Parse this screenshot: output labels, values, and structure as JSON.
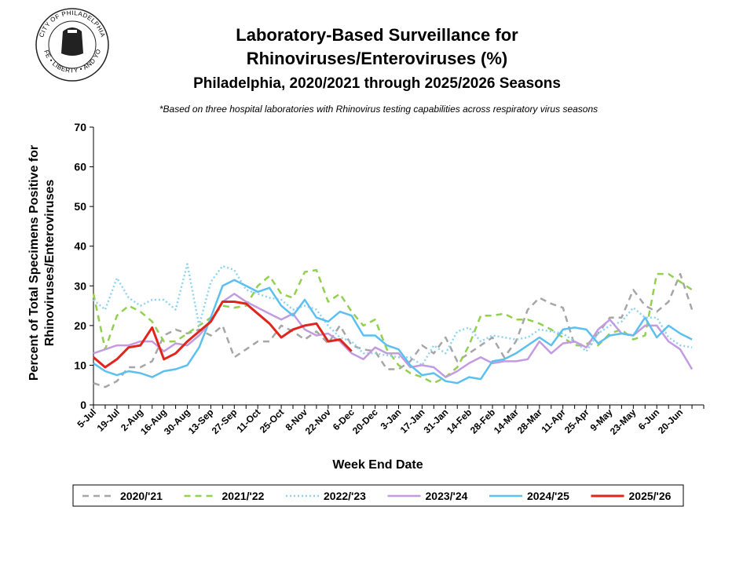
{
  "logo": {
    "top": "CITY OF PHILADELPHIA",
    "bottom": "LIFE • LIBERTY • AND YOU"
  },
  "chart_data": {
    "type": "line",
    "title": "Laboratory-Based Surveillance for",
    "title2": "Rhinoviruses/Enteroviruses (%)",
    "subtitle": "Philadelphia, 2020/2021 through 2025/2026 Seasons",
    "note": "*Based on three hospital laboratories with Rhinovirus testing capabilities across respiratory virus seasons",
    "xlabel": "Week End Date",
    "ylabel": "Percent of Total Specimens Positive for",
    "ylabel2": "Rhinoviruses/Enteroviruses",
    "ylim": [
      0,
      70
    ],
    "yticks": [
      0,
      10,
      20,
      30,
      40,
      50,
      60,
      70
    ],
    "grid": false,
    "legend": "bottom",
    "categories": [
      "5-Jul",
      null,
      "19-Jul",
      null,
      "2-Aug",
      null,
      "16-Aug",
      null,
      "30-Aug",
      null,
      "13-Sep",
      null,
      "27-Sep",
      null,
      "11-Oct",
      null,
      "25-Oct",
      null,
      "8-Nov",
      null,
      "22-Nov",
      null,
      "6-Dec",
      null,
      "20-Dec",
      null,
      "3-Jan",
      null,
      "17-Jan",
      null,
      "31-Jan",
      null,
      "14-Feb",
      null,
      "28-Feb",
      null,
      "14-Mar",
      null,
      "28-Mar",
      null,
      "11-Apr",
      null,
      "25-Apr",
      null,
      "9-May",
      null,
      "23-May",
      null,
      "6-Jun",
      null,
      "20-Jun",
      null
    ],
    "series": [
      {
        "name": "2020/'21",
        "color": "#a6a6a6",
        "style": "dashed",
        "values": [
          5.5,
          4.5,
          6,
          9.5,
          9.5,
          11,
          17.5,
          19,
          18,
          19,
          17.5,
          20,
          12,
          14,
          16,
          16,
          20,
          18.5,
          16.5,
          18.5,
          15.5,
          20,
          15,
          14,
          13.5,
          9,
          9,
          11,
          15,
          13,
          17,
          11,
          13,
          15,
          17,
          12,
          16,
          24,
          27,
          25.5,
          24.5,
          15,
          15,
          18,
          22,
          22,
          29,
          25,
          23.5,
          26,
          33,
          24
        ]
      },
      {
        "name": "2021/'22",
        "color": "#92d050",
        "style": "dashed",
        "values": [
          28,
          14,
          22.5,
          25,
          23.5,
          21,
          16,
          16,
          18,
          20,
          22,
          25,
          24.5,
          25,
          30,
          32.5,
          28,
          27,
          33.5,
          34,
          26,
          28,
          23.5,
          20,
          21.5,
          14,
          10,
          8,
          7,
          5.5,
          7,
          9.5,
          15,
          22.5,
          22.5,
          23,
          21.5,
          21.5,
          20.5,
          19,
          17,
          15,
          15.5,
          15,
          18,
          19,
          16.5,
          17.5,
          33,
          33,
          31,
          29
        ]
      },
      {
        "name": "2022/'23",
        "color": "#8fd3f0",
        "style": "dotted",
        "values": [
          26.5,
          24,
          32,
          27,
          25,
          26.5,
          26.5,
          24,
          35.5,
          20,
          31,
          35,
          34,
          29,
          28,
          27,
          26.5,
          24,
          25,
          24,
          20,
          17,
          16,
          13,
          13,
          12.5,
          12,
          12,
          10,
          15,
          13,
          18.5,
          19.5,
          16,
          17.5,
          17,
          16.5,
          17,
          19,
          18.5,
          18,
          16,
          13.5,
          18,
          20,
          21,
          24.5,
          22,
          22,
          17,
          15,
          14.5
        ]
      },
      {
        "name": "2023/'24",
        "color": "#c39be0",
        "style": "solid",
        "values": [
          13,
          14,
          15,
          15,
          16,
          16,
          13.5,
          15.5,
          15,
          17.5,
          21,
          26,
          28,
          26,
          24.5,
          23,
          21.5,
          23,
          19,
          17.5,
          18,
          16,
          13,
          11.5,
          14.5,
          13,
          13,
          9.5,
          10,
          9.5,
          7,
          8.5,
          10.5,
          12,
          10.5,
          11,
          11,
          11.5,
          16,
          13,
          15.5,
          16,
          14.5,
          19,
          21.5,
          18,
          17.5,
          20,
          20,
          16,
          14,
          9
        ]
      },
      {
        "name": "2024/'25",
        "color": "#5bc0f0",
        "style": "solid",
        "values": [
          10.5,
          8.5,
          7.5,
          8.5,
          8,
          7,
          8.5,
          9,
          10,
          14.5,
          22,
          30,
          31.5,
          30,
          28.5,
          29.5,
          25,
          22.5,
          26.5,
          22,
          21,
          23.5,
          22.5,
          17.5,
          17.5,
          15,
          14,
          10,
          7.5,
          8,
          6,
          5.5,
          7,
          6.5,
          11,
          11.5,
          13,
          15,
          17,
          15,
          19,
          19.5,
          19,
          15.5,
          17.5,
          18,
          17.5,
          22,
          17,
          20,
          18,
          16.5
        ]
      },
      {
        "name": "2025/'26",
        "color": "#e0261c",
        "style": "bold",
        "values": [
          12,
          9.5,
          11.5,
          14.5,
          15,
          19.5,
          11.5,
          13,
          16,
          18.5,
          21,
          26,
          26,
          25.5,
          23,
          20.5,
          17,
          19,
          20,
          20.5,
          16,
          16.5,
          13.5,
          null,
          null,
          null,
          null,
          null,
          null,
          null,
          null,
          null,
          null,
          null,
          null,
          null,
          null,
          null,
          null,
          null,
          null,
          null,
          null,
          null,
          null,
          null,
          null,
          null,
          null,
          null,
          null,
          null
        ]
      }
    ]
  }
}
